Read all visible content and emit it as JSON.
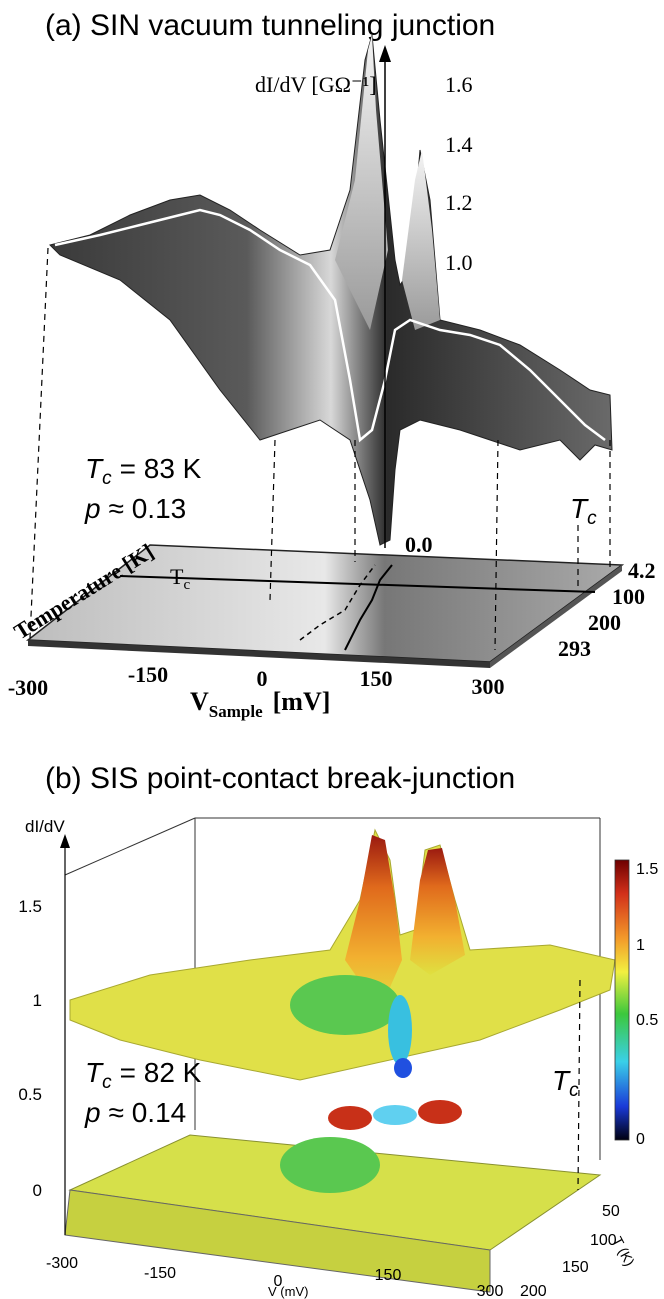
{
  "panel_a": {
    "title": "(a) SIN vacuum tunneling junction",
    "z_label": "dI/dV [GΩ⁻¹]",
    "z_ticks": [
      "1.6",
      "1.4",
      "1.2",
      "1.0"
    ],
    "zero_label": "0.0",
    "x_label": {
      "symbol": "V",
      "subscript": "Sample",
      "unit": "[mV]"
    },
    "x_ticks": [
      "-300",
      "-150",
      "0",
      "150",
      "300"
    ],
    "y_label": "Temperature [K]",
    "y_ticks": [
      "4.2",
      "100",
      "200",
      "293"
    ],
    "floor_tc": {
      "symbol": "T",
      "subscript": "c"
    },
    "tc_annotation": {
      "symbol": "T",
      "subscript": "c",
      "text": "= 83 K"
    },
    "p_annotation": {
      "symbol": "p",
      "text": "≈ 0.13"
    },
    "tc_marker": {
      "symbol": "T",
      "subscript": "c"
    }
  },
  "panel_b": {
    "title": "(b) SIS point-contact break-junction",
    "z_label": "dI/dV",
    "z_ticks": [
      "1.5",
      "1",
      "0.5",
      "0"
    ],
    "colorbar_ticks": [
      "1.5",
      "1",
      "0.5",
      "0"
    ],
    "x_label": "V (mV)",
    "x_ticks": [
      "-300",
      "-150",
      "0",
      "150",
      "300"
    ],
    "y_label": "T (K)",
    "y_ticks": [
      "50",
      "100",
      "150",
      "200"
    ],
    "tc_annotation": {
      "symbol": "T",
      "subscript": "c",
      "text": "= 82 K"
    },
    "p_annotation": {
      "symbol": "p",
      "text": "≈ 0.14"
    },
    "tc_marker": {
      "symbol": "T",
      "subscript": "c"
    }
  }
}
